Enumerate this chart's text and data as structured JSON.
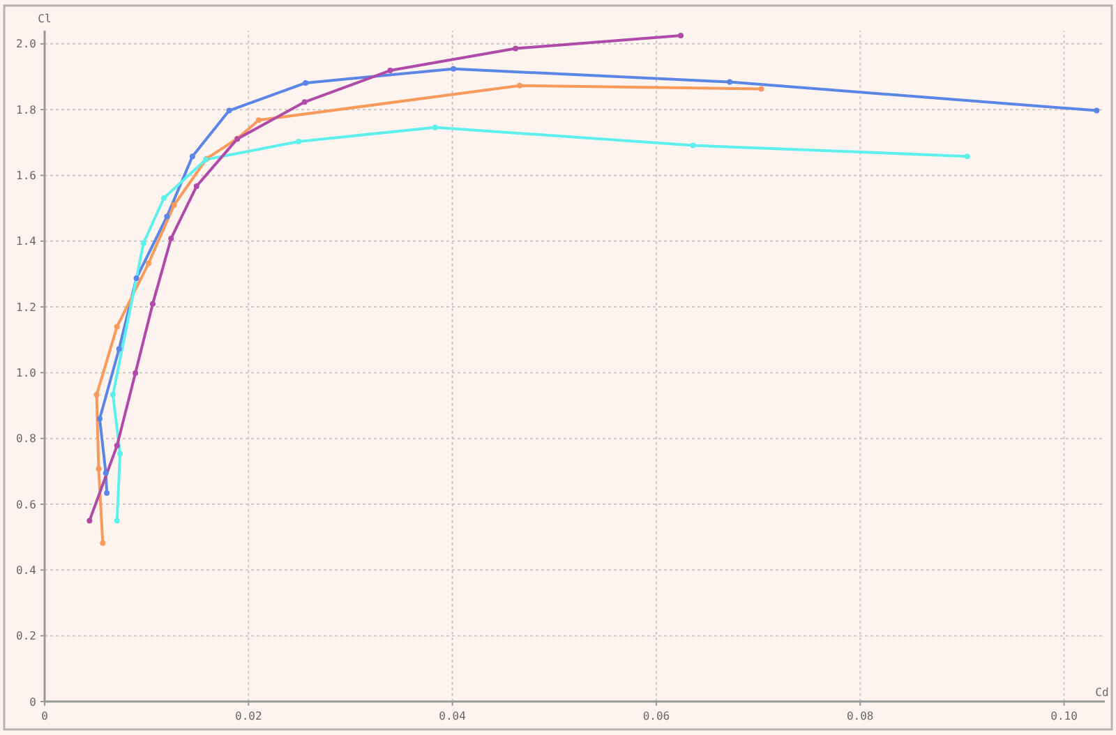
{
  "chart_data": {
    "type": "line",
    "xlabel": "Cd",
    "ylabel": "Cl",
    "xlim": [
      0,
      0.104
    ],
    "ylim": [
      0,
      2.04
    ],
    "xticks": [
      0,
      0.02,
      0.04,
      0.06,
      0.08,
      {
        "value": 0.1,
        "label": "0.10"
      }
    ],
    "yticks": [
      0,
      0.2,
      0.4,
      0.6,
      0.8,
      {
        "value": 1,
        "label": "1.0"
      },
      1.2,
      1.4,
      1.6,
      1.8,
      {
        "value": 2,
        "label": "2.0"
      }
    ],
    "grid": true,
    "marker": "circle",
    "line_style": "solid",
    "series": [
      {
        "color": "#5b86e5",
        "x": [
          0.0061,
          0.006,
          0.0054,
          0.0073,
          0.009,
          0.012,
          0.0145,
          0.0181,
          0.0256,
          0.0401,
          0.0672,
          0.1032
        ],
        "values": [
          0.634,
          0.695,
          0.86,
          1.072,
          1.287,
          1.475,
          1.658,
          1.797,
          1.881,
          1.924,
          1.884,
          1.797
        ]
      },
      {
        "color": "#f79a5b",
        "x": [
          0.0057,
          0.0053,
          0.0051,
          0.0071,
          0.0102,
          0.0127,
          0.0159,
          0.0189,
          0.021,
          0.0466,
          0.0703
        ],
        "values": [
          0.482,
          0.708,
          0.933,
          1.14,
          1.333,
          1.51,
          1.651,
          1.712,
          1.768,
          1.873,
          1.863
        ]
      },
      {
        "color": "#5ef0ec",
        "x": [
          0.0071,
          0.0074,
          0.0067,
          0.0097,
          0.0117,
          0.0158,
          0.0249,
          0.0383,
          0.0636,
          0.0905
        ],
        "values": [
          0.55,
          0.754,
          0.933,
          1.394,
          1.531,
          1.648,
          1.703,
          1.746,
          1.691,
          1.658
        ]
      },
      {
        "color": "#b04aa8",
        "x": [
          0.0044,
          0.0071,
          0.0089,
          0.0106,
          0.0124,
          0.0149,
          0.0189,
          0.0255,
          0.0339,
          0.0462,
          0.0624
        ],
        "values": [
          0.55,
          0.778,
          0.999,
          1.209,
          1.408,
          1.567,
          1.711,
          1.823,
          1.919,
          1.986,
          2.025
        ]
      }
    ]
  }
}
